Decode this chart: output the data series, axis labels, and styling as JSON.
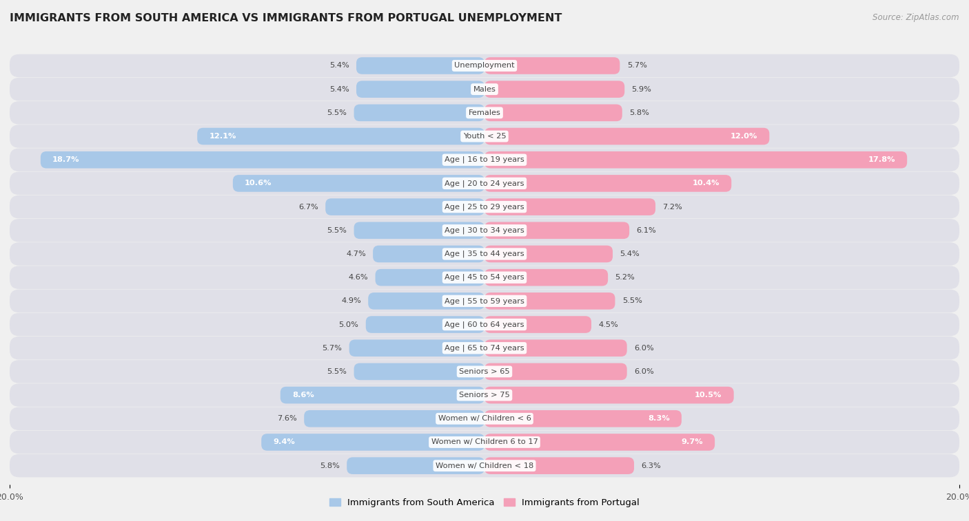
{
  "title": "IMMIGRANTS FROM SOUTH AMERICA VS IMMIGRANTS FROM PORTUGAL UNEMPLOYMENT",
  "source": "Source: ZipAtlas.com",
  "categories": [
    "Unemployment",
    "Males",
    "Females",
    "Youth < 25",
    "Age | 16 to 19 years",
    "Age | 20 to 24 years",
    "Age | 25 to 29 years",
    "Age | 30 to 34 years",
    "Age | 35 to 44 years",
    "Age | 45 to 54 years",
    "Age | 55 to 59 years",
    "Age | 60 to 64 years",
    "Age | 65 to 74 years",
    "Seniors > 65",
    "Seniors > 75",
    "Women w/ Children < 6",
    "Women w/ Children 6 to 17",
    "Women w/ Children < 18"
  ],
  "south_america": [
    5.4,
    5.4,
    5.5,
    12.1,
    18.7,
    10.6,
    6.7,
    5.5,
    4.7,
    4.6,
    4.9,
    5.0,
    5.7,
    5.5,
    8.6,
    7.6,
    9.4,
    5.8
  ],
  "portugal": [
    5.7,
    5.9,
    5.8,
    12.0,
    17.8,
    10.4,
    7.2,
    6.1,
    5.4,
    5.2,
    5.5,
    4.5,
    6.0,
    6.0,
    10.5,
    8.3,
    9.7,
    6.3
  ],
  "color_sa": "#a8c8e8",
  "color_pt": "#f4a0b8",
  "xlim": 20.0,
  "background_color": "#f0f0f0",
  "row_bg_color": "#e0e0e8",
  "label_sa": "Immigrants from South America",
  "label_pt": "Immigrants from Portugal",
  "sa_label_white_threshold": 8.0,
  "pt_label_white_threshold": 8.0
}
